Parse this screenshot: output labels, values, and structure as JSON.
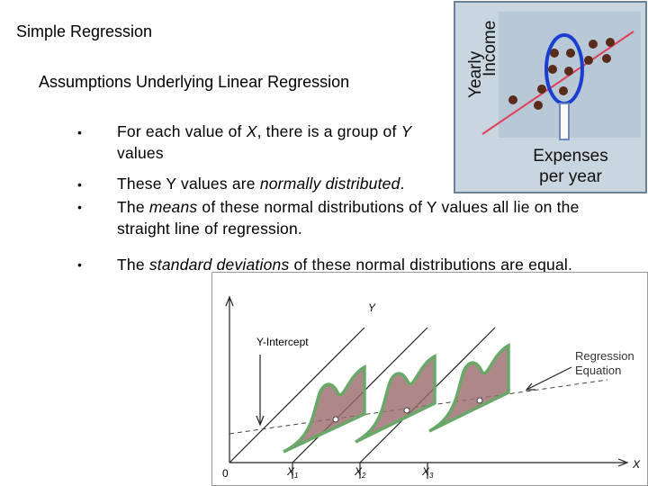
{
  "slide": {
    "title": "Simple Regression",
    "subtitle": "Assumptions Underlying Linear Regression",
    "bullets": [
      {
        "parts": [
          {
            "text": "For each value of "
          },
          {
            "text": "X",
            "em": true
          },
          {
            "text": ", there is a group of "
          },
          {
            "text": "Y",
            "em": true
          },
          {
            "text": " values"
          }
        ]
      },
      {
        "parts": [
          {
            "text": "These Y values are "
          },
          {
            "text": "normally distributed",
            "em": true
          },
          {
            "text": "."
          }
        ]
      },
      {
        "parts": [
          {
            "text": "The "
          },
          {
            "text": "means",
            "em": true
          },
          {
            "text": " of these normal distributions of Y values all lie on the straight line of regression."
          }
        ]
      },
      {
        "parts": [
          {
            "text": "The "
          },
          {
            "text": "standard deviations",
            "em": true
          },
          {
            "text": " of these normal distributions are equal."
          }
        ]
      }
    ],
    "scatter_figure": {
      "y_label": [
        "Yearly",
        "Income"
      ],
      "x_label": [
        "Expenses",
        "per year"
      ]
    },
    "regression_figure": {
      "y_axis": "Y",
      "x_axis": "X",
      "origin": "0",
      "intercept_label": "Y-Intercept",
      "equation_label": [
        "Regression",
        "Equation"
      ],
      "x_points": [
        {
          "main": "X",
          "sub": "1"
        },
        {
          "main": "X",
          "sub": "2"
        },
        {
          "main": "X",
          "sub": "3"
        }
      ]
    }
  }
}
